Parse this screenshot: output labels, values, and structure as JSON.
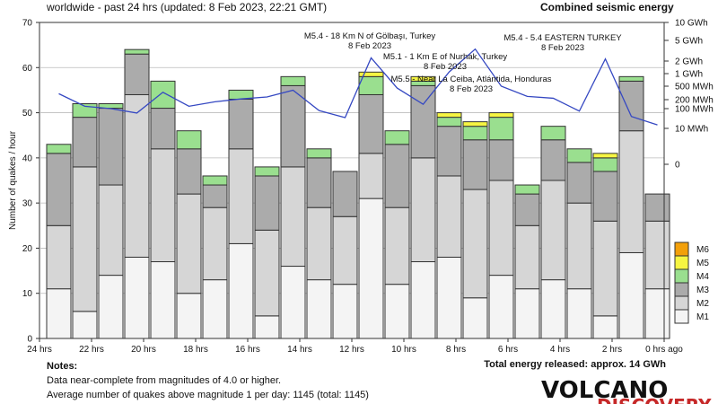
{
  "header": {
    "subtitle": "worldwide - past 24 hrs (updated: 8 Feb 2023, 22:21 GMT)",
    "right_title": "Combined seismic energy"
  },
  "notes": {
    "title": "Notes:",
    "line1": "Data near-complete from magnitudes of 4.0 or higher.",
    "line2": "Average number of quakes above magnitude 1 per day: 1145 (total: 1145)"
  },
  "total_energy": "Total energy released: approx. 14 GWh",
  "logo": {
    "line1": "VOLCANO",
    "line2": "DISCOVERY"
  },
  "colors": {
    "M1": "#f4f4f4",
    "M2": "#d6d6d6",
    "M3": "#ababab",
    "M4": "#9adf8f",
    "M5": "#f6f542",
    "M6": "#f3a00a",
    "energy_line": "#3548c2",
    "grid": "#bbbbbb"
  },
  "chart_data": {
    "type": "bar",
    "stacked": true,
    "ylabel": "Number of quakes / hour",
    "ylim": [
      0,
      70
    ],
    "yticks": [
      0,
      10,
      20,
      30,
      40,
      50,
      60,
      70
    ],
    "grid": "horizontal",
    "xlim": [
      24,
      0
    ],
    "xticks": [
      {
        "v": 24,
        "label": "24 hrs"
      },
      {
        "v": 22,
        "label": "22 hrs"
      },
      {
        "v": 20,
        "label": "20 hrs"
      },
      {
        "v": 18,
        "label": "18 hrs"
      },
      {
        "v": 16,
        "label": "16 hrs"
      },
      {
        "v": 14,
        "label": "14 hrs"
      },
      {
        "v": 12,
        "label": "12 hrs"
      },
      {
        "v": 10,
        "label": "10 hrs"
      },
      {
        "v": 8,
        "label": "8 hrs"
      },
      {
        "v": 6,
        "label": "6 hrs"
      },
      {
        "v": 4,
        "label": "4 hrs"
      },
      {
        "v": 2,
        "label": "2 hrs"
      },
      {
        "v": 0,
        "label": "0 hrs ago"
      }
    ],
    "categories": [
      "23.5",
      "22.5",
      "21.5",
      "20.5",
      "19.5",
      "18.5",
      "17.5",
      "16.5",
      "15.5",
      "14.5",
      "13.5",
      "12.5",
      "11.5",
      "10.5",
      "9.5",
      "8.5",
      "7.5",
      "6.5",
      "5.5",
      "4.5",
      "3.5",
      "2.5",
      "1.5",
      "0.5"
    ],
    "series": [
      {
        "name": "M1",
        "values": [
          11,
          6,
          14,
          18,
          17,
          10,
          13,
          21,
          5,
          16,
          13,
          12,
          31,
          12,
          17,
          18,
          9,
          14,
          11,
          13,
          11,
          5,
          19,
          11
        ]
      },
      {
        "name": "M2",
        "values": [
          14,
          32,
          20,
          36,
          25,
          22,
          16,
          21,
          19,
          22,
          16,
          15,
          10,
          17,
          23,
          18,
          24,
          21,
          14,
          22,
          19,
          21,
          27,
          15
        ]
      },
      {
        "name": "M3",
        "values": [
          16,
          11,
          17,
          9,
          9,
          10,
          5,
          11,
          12,
          18,
          11,
          10,
          13,
          14,
          16,
          11,
          11,
          9,
          7,
          9,
          9,
          11,
          11,
          6
        ]
      },
      {
        "name": "M4",
        "values": [
          2,
          3,
          1,
          1,
          6,
          4,
          2,
          2,
          2,
          2,
          2,
          0,
          4,
          3,
          1,
          2,
          3,
          5,
          2,
          3,
          3,
          3,
          1,
          0
        ]
      },
      {
        "name": "M5",
        "values": [
          0,
          0,
          0,
          0,
          0,
          0,
          0,
          0,
          0,
          0,
          0,
          0,
          1,
          0,
          1,
          1,
          1,
          1,
          0,
          0,
          0,
          1,
          0,
          0
        ]
      },
      {
        "name": "M6",
        "values": [
          0,
          0,
          0,
          0,
          0,
          0,
          0,
          0,
          0,
          0,
          0,
          0,
          0,
          0,
          0,
          0,
          0,
          0,
          0,
          0,
          0,
          0,
          0,
          0
        ]
      }
    ],
    "legend": [
      "M6",
      "M5",
      "M4",
      "M3",
      "M2",
      "M1"
    ],
    "legend_position": "bottom-right",
    "energy_axis": {
      "scale": "log",
      "ticks": [
        "10 GWh",
        "5 GWh",
        "2 GWh",
        "1 GWh",
        "500 MWh",
        "200 MWh",
        "100 MWh",
        "10 MWh",
        "0"
      ],
      "tick_mwh": [
        10000,
        5000,
        2000,
        1000,
        500,
        200,
        100,
        10,
        0
      ]
    },
    "energy_line_mwh": [
      300,
      120,
      100,
      60,
      330,
      120,
      170,
      210,
      240,
      380,
      80,
      35,
      2300,
      440,
      140,
      1100,
      3400,
      500,
      250,
      220,
      75,
      2200,
      40,
      15
    ],
    "annotations": [
      {
        "hours": 12,
        "lines": [
          "M5.4 - 18 Km N of Gölbaşı, Turkey",
          "8 Feb 2023"
        ]
      },
      {
        "hours": 8.5,
        "lines": [
          "M5.1 - 1 Km E of Nurhak, Turkey",
          "8 Feb 2023"
        ]
      },
      {
        "hours": 8.5,
        "lines": [
          "M5.5 - Near La Ceiba, Atlántida, Honduras",
          "8 Feb 2023"
        ]
      },
      {
        "hours": 2,
        "lines": [
          "M5.4 - 5.4 EASTERN TURKEY",
          "8 Feb 2023"
        ]
      }
    ]
  }
}
